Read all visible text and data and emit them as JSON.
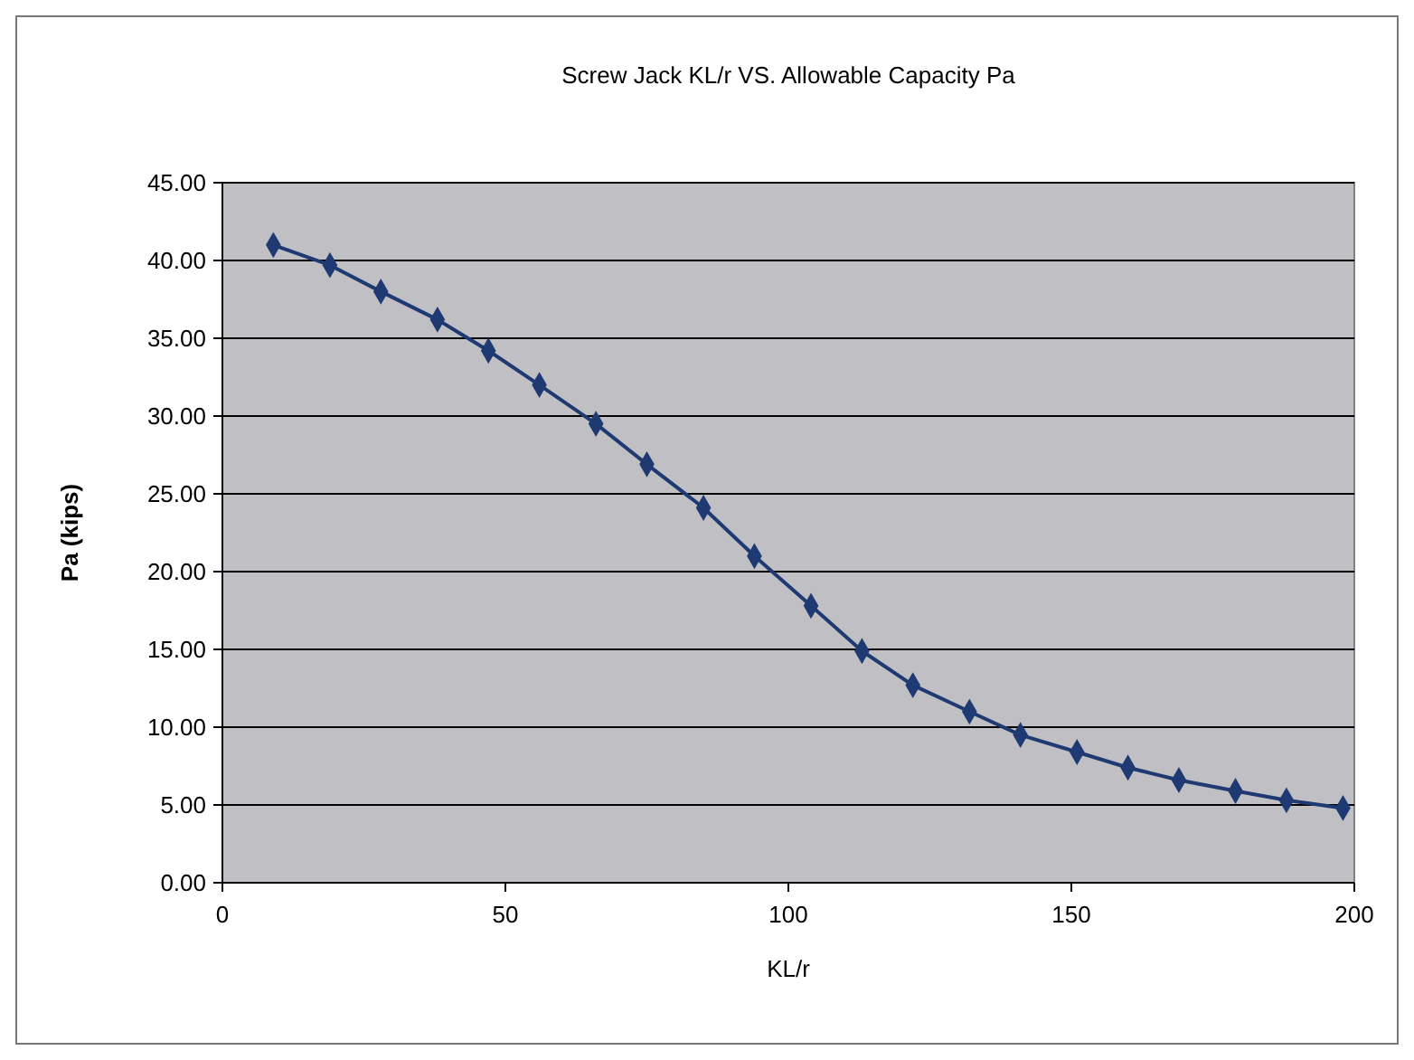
{
  "chart_data": {
    "type": "line",
    "title": "Screw Jack KL/r VS. Allowable Capacity Pa",
    "xlabel": "KL/r",
    "ylabel": "Pa (kips)",
    "x": [
      9,
      19,
      28,
      38,
      47,
      56,
      66,
      75,
      85,
      94,
      104,
      113,
      122,
      132,
      141,
      151,
      160,
      169,
      179,
      188,
      198
    ],
    "series": [
      {
        "color": "#1f3a73",
        "values": [
          41.0,
          39.7,
          38.0,
          36.2,
          34.2,
          32.0,
          29.5,
          26.9,
          24.1,
          21.0,
          17.8,
          14.9,
          12.7,
          11.0,
          9.5,
          8.4,
          7.4,
          6.6,
          5.9,
          5.3,
          4.8
        ]
      }
    ],
    "xlim": [
      0,
      200
    ],
    "xticks": [
      0,
      50,
      100,
      150,
      200
    ],
    "ylim": [
      0,
      45
    ],
    "yticks": [
      {
        "value": 0,
        "label": "0.00"
      },
      {
        "value": 5,
        "label": "5.00"
      },
      {
        "value": 10,
        "label": "10.00"
      },
      {
        "value": 15,
        "label": "15.00"
      },
      {
        "value": 20,
        "label": "20.00"
      },
      {
        "value": 25,
        "label": "25.00"
      },
      {
        "value": 30,
        "label": "30.00"
      },
      {
        "value": 35,
        "label": "35.00"
      },
      {
        "value": 40,
        "label": "40.00"
      },
      {
        "value": 45,
        "label": "45.00"
      }
    ],
    "grid": "y",
    "marker": "diamond",
    "line_style": "solid"
  }
}
